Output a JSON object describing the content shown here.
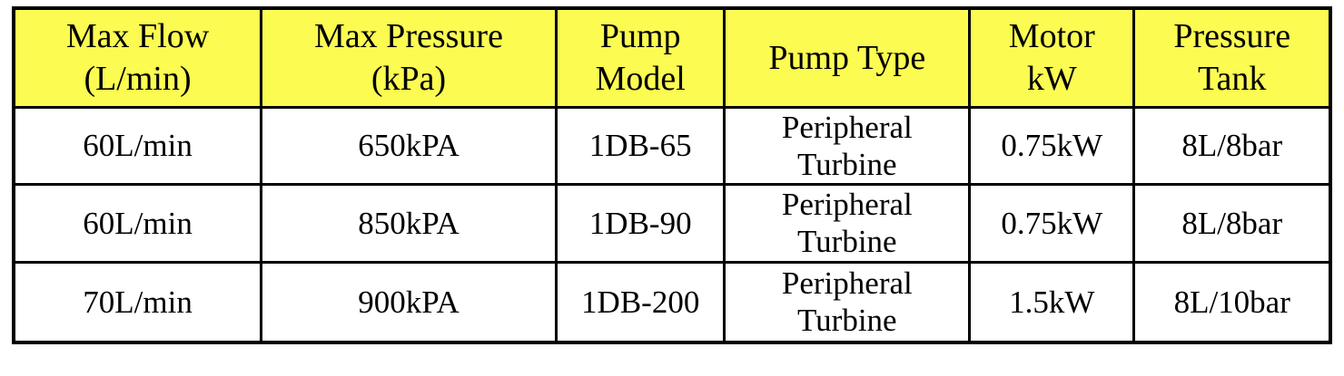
{
  "colors": {
    "header_background": "#FBFB52",
    "border": "#000000",
    "text": "#000000",
    "page_background": "#FFFFFF"
  },
  "table": {
    "headers": [
      {
        "label": "Max Flow\n(L/min)"
      },
      {
        "label": "Max Pressure\n(kPa)"
      },
      {
        "label": "Pump\nModel"
      },
      {
        "label": "Pump Type"
      },
      {
        "label": "Motor\nkW"
      },
      {
        "label": "Pressure\nTank"
      }
    ],
    "rows": [
      {
        "cells": [
          "60L/min",
          "650kPA",
          "1DB-65",
          "Peripheral\nTurbine",
          "0.75kW",
          "8L/8bar"
        ]
      },
      {
        "cells": [
          "60L/min",
          "850kPA",
          "1DB-90",
          "Peripheral\nTurbine",
          "0.75kW",
          "8L/8bar"
        ]
      },
      {
        "cells": [
          "70L/min",
          "900kPA",
          "1DB-200",
          "Peripheral\nTurbine",
          "1.5kW",
          "8L/10bar"
        ]
      }
    ]
  }
}
